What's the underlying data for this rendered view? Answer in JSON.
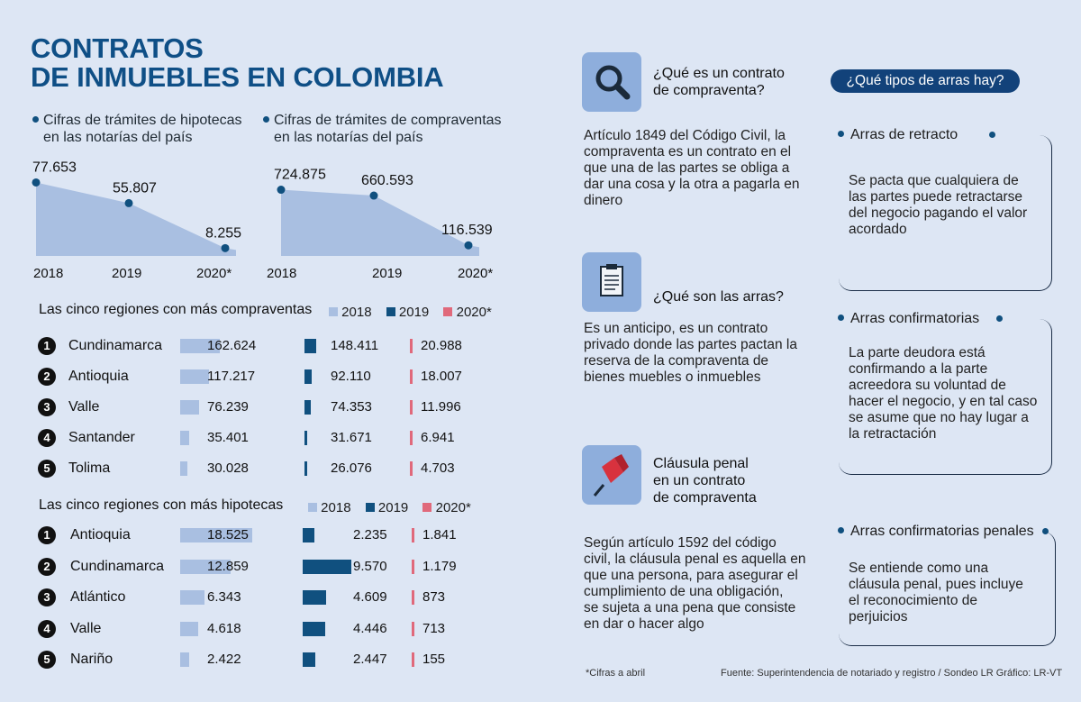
{
  "title": {
    "line1": "CONTRATOS",
    "line2": "DE INMUEBLES EN COLOMBIA"
  },
  "colors": {
    "y2018": "#a9bfe1",
    "y2019": "#10507f",
    "y2020": "#e0697b",
    "area": "#a9bfe1",
    "dark": "#10507f"
  },
  "chart_data": [
    {
      "type": "area",
      "title": "Cifras de trámites de hipotecas en las notarías del país",
      "title_line1": "Cifras de trámites de hipotecas",
      "title_line2": "en las notarías del país",
      "categories": [
        "2018",
        "2019",
        "2020*"
      ],
      "values": [
        77653,
        55807,
        8255
      ],
      "value_labels": [
        "77.653",
        "55.807",
        "8.255"
      ],
      "ylim": [
        0,
        80000
      ]
    },
    {
      "type": "area",
      "title": "Cifras de trámites de compraventas en las notarías del país",
      "title_line1": "Cifras de trámites de compraventas",
      "title_line2": "en las notarías del país",
      "categories": [
        "2018",
        "2019",
        "2020*"
      ],
      "values": [
        724875,
        660593,
        116539
      ],
      "value_labels": [
        "724.875",
        "660.593",
        "116.539"
      ],
      "ylim": [
        0,
        750000
      ]
    },
    {
      "type": "bar",
      "title": "Las cinco regiones con más compraventas",
      "legend": [
        "2018",
        "2019",
        "2020*"
      ],
      "categories": [
        "Cundinamarca",
        "Antioquia",
        "Valle",
        "Santander",
        "Tolima"
      ],
      "ranks": [
        "1",
        "2",
        "3",
        "4",
        "5"
      ],
      "series": [
        {
          "name": "2018",
          "values": [
            162624,
            117217,
            76239,
            35401,
            30028
          ],
          "labels": [
            "162.624",
            "117.217",
            "76.239",
            "35.401",
            "30.028"
          ]
        },
        {
          "name": "2019",
          "values": [
            148411,
            92110,
            74353,
            31671,
            26076
          ],
          "labels": [
            "148.411",
            "92.110",
            "74.353",
            "31.671",
            "26.076"
          ]
        },
        {
          "name": "2020*",
          "values": [
            20988,
            18007,
            11996,
            6941,
            4703
          ],
          "labels": [
            "20.988",
            "18.007",
            "11.996",
            "6.941",
            "4.703"
          ]
        }
      ]
    },
    {
      "type": "bar",
      "title": "Las cinco regiones con más hipotecas",
      "legend": [
        "2018",
        "2019",
        "2020*"
      ],
      "categories": [
        "Antioquia",
        "Cundinamarca",
        "Atlántico",
        "Valle",
        "Nariño"
      ],
      "ranks": [
        "1",
        "2",
        "3",
        "4",
        "5"
      ],
      "series": [
        {
          "name": "2018",
          "values": [
            18525,
            12859,
            6343,
            4618,
            2422
          ],
          "labels": [
            "18.525",
            "12.859",
            "6.343",
            "4.618",
            "2.422"
          ]
        },
        {
          "name": "2019",
          "values": [
            2235,
            9570,
            4609,
            4446,
            2447
          ],
          "labels": [
            "2.235",
            "9.570",
            "4.609",
            "4.446",
            "2.447"
          ]
        },
        {
          "name": "2020*",
          "values": [
            1841,
            1179,
            873,
            713,
            155
          ],
          "labels": [
            "1.841",
            "1.179",
            "873",
            "713",
            "155"
          ]
        }
      ]
    }
  ],
  "qa": [
    {
      "icon": "magnifier-icon",
      "title_line1": "¿Qué es un contrato",
      "title_line2": "de compraventa?",
      "title_line3": "",
      "body": [
        "Artículo 1849 del Código Civil, la",
        "compraventa es un contrato en el",
        "que una de las partes se obliga a",
        "dar una cosa y la otra a pagarla en",
        "dinero"
      ]
    },
    {
      "icon": "clipboard-icon",
      "title_line1": "¿Qué son las arras?",
      "title_line2": "",
      "title_line3": "",
      "body": [
        "Es un anticipo, es un contrato",
        "privado donde las partes pactan la",
        "reserva de la compraventa de",
        "bienes muebles o inmuebles"
      ]
    },
    {
      "icon": "pushpin-icon",
      "title_line1": "Cláusula penal",
      "title_line2": "en un contrato",
      "title_line3": "de compraventa",
      "body": [
        "Según artículo 1592 del código",
        "civil, la cláusula penal es aquella en",
        "que una persona, para asegurar el",
        "cumplimiento de una obligación,",
        "se sujeta a una pena que consiste",
        "en dar o hacer algo"
      ]
    }
  ],
  "arras": {
    "heading": "¿Qué tipos de arras hay?",
    "items": [
      {
        "name": "Arras de retracto",
        "body": [
          "Se pacta que cualquiera de",
          "las partes puede retractarse",
          "del negocio pagando el valor",
          "acordado"
        ]
      },
      {
        "name": "Arras confirmatorias",
        "body": [
          "La parte deudora está",
          "confirmando a la parte",
          "acreedora su voluntad de",
          "hacer el negocio, y en tal caso",
          "se asume que no hay lugar a",
          "la retractación"
        ]
      },
      {
        "name": "Arras confirmatorias penales",
        "body": [
          "Se entiende como una",
          "cláusula penal, pues incluye",
          "el reconocimiento de",
          "perjuicios"
        ]
      }
    ]
  },
  "footer": {
    "note": "*Cifras a abril",
    "source": "Fuente: Superintendencia de notariado y registro / Sondeo LR   Gráfico: LR-VT"
  }
}
